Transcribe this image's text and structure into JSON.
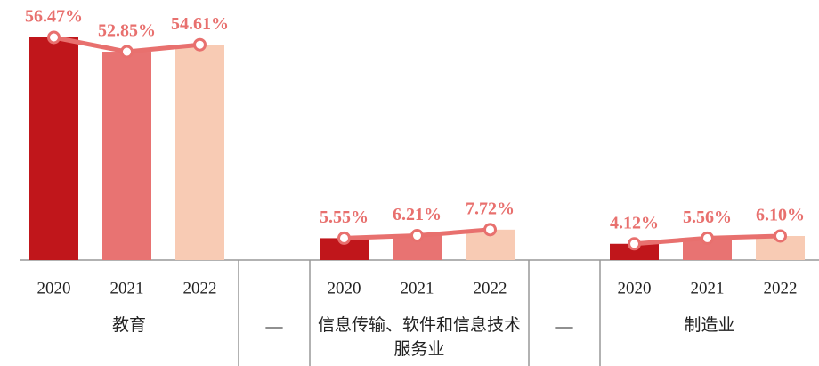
{
  "chart_data": {
    "type": "bar",
    "groups": [
      {
        "name": "教育",
        "categories": [
          "2020",
          "2021",
          "2022"
        ],
        "values": [
          56.47,
          52.85,
          54.61
        ],
        "value_labels": [
          "56.47%",
          "52.85%",
          "54.61%"
        ]
      },
      {
        "name": "信息传输、软件和信息技术服务业",
        "categories": [
          "2020",
          "2021",
          "2022"
        ],
        "values": [
          5.55,
          6.21,
          7.72
        ],
        "value_labels": [
          "5.55%",
          "6.21%",
          "7.72%"
        ]
      },
      {
        "name": "制造业",
        "categories": [
          "2020",
          "2021",
          "2022"
        ],
        "values": [
          4.12,
          5.56,
          6.1
        ],
        "value_labels": [
          "4.12%",
          "5.56%",
          "6.10%"
        ]
      }
    ],
    "separators": [
      "—",
      "—"
    ],
    "colors": [
      "#c0161b",
      "#e87372",
      "#f8cbb4"
    ],
    "line_color": "#e8706e"
  }
}
